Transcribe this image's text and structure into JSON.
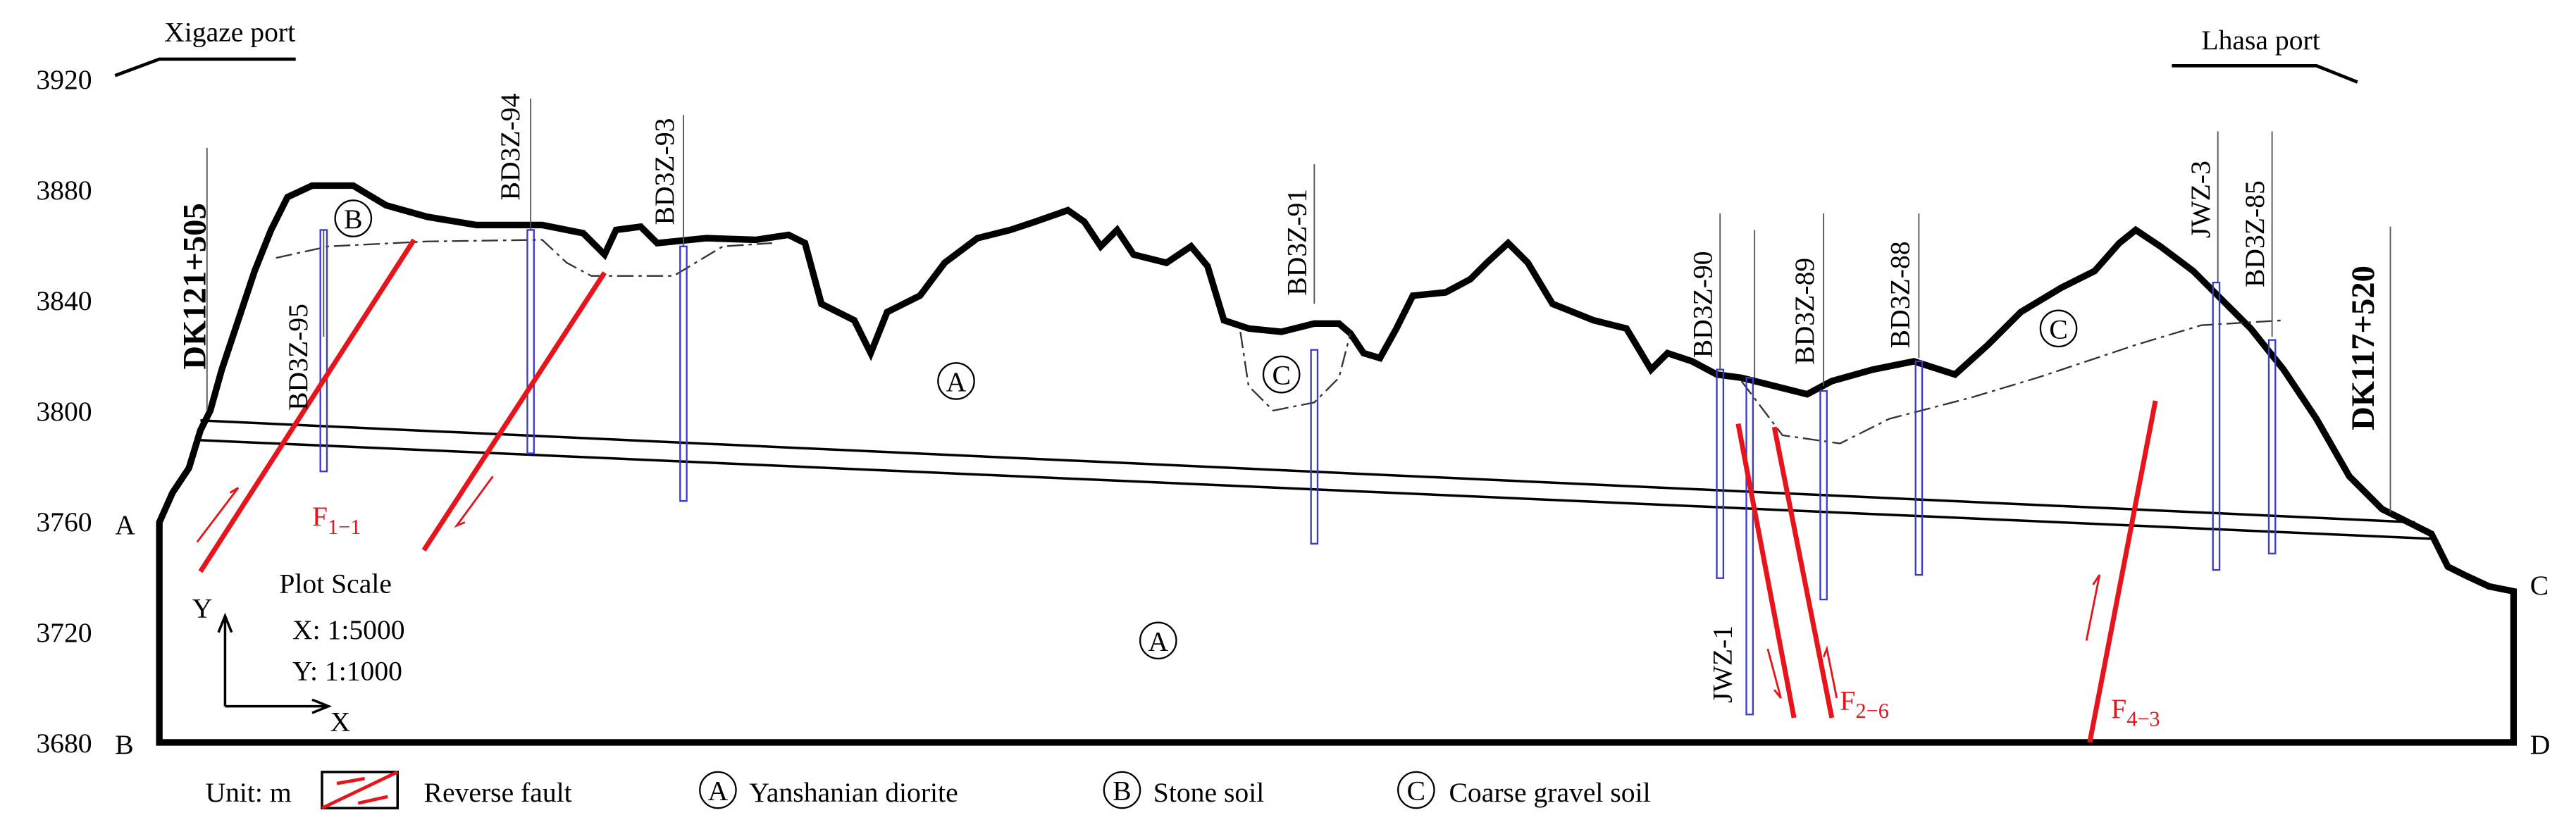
{
  "header": {
    "left_port": "Xigaze port",
    "right_port": "Lhasa port"
  },
  "y_axis": {
    "ticks": [
      3920,
      3880,
      3840,
      3800,
      3760,
      3720,
      3680
    ]
  },
  "chainage": {
    "start": "DK121+505",
    "end": "DK117+520"
  },
  "corners": {
    "a": "A",
    "b": "B",
    "c": "C",
    "d": "D"
  },
  "boreholes": [
    "BD3Z-95",
    "BD3Z-94",
    "BD3Z-93",
    "BD3Z-91",
    "BD3Z-90",
    "BD3Z-89",
    "BD3Z-88",
    "JWZ-3",
    "BD3Z-85",
    "JWZ-1"
  ],
  "units": {
    "a1": "A",
    "a2": "A",
    "b": "B",
    "c1": "C",
    "c2": "C"
  },
  "faults": [
    {
      "base": "F",
      "sub": "1−1"
    },
    {
      "base": "F",
      "sub": "2−6"
    },
    {
      "base": "F",
      "sub": "4−3"
    }
  ],
  "plot_scale": {
    "title": "Plot Scale",
    "x": "X: 1:5000",
    "y": "Y: 1:1000",
    "x_axis": "X",
    "y_axis": "Y"
  },
  "legend": {
    "unit": "Unit: m",
    "fault": "Reverse fault",
    "a_letter": "A",
    "a": "Yanshanian diorite",
    "b_letter": "B",
    "b": "Stone soil",
    "c_letter": "C",
    "c": "Coarse gravel soil"
  }
}
